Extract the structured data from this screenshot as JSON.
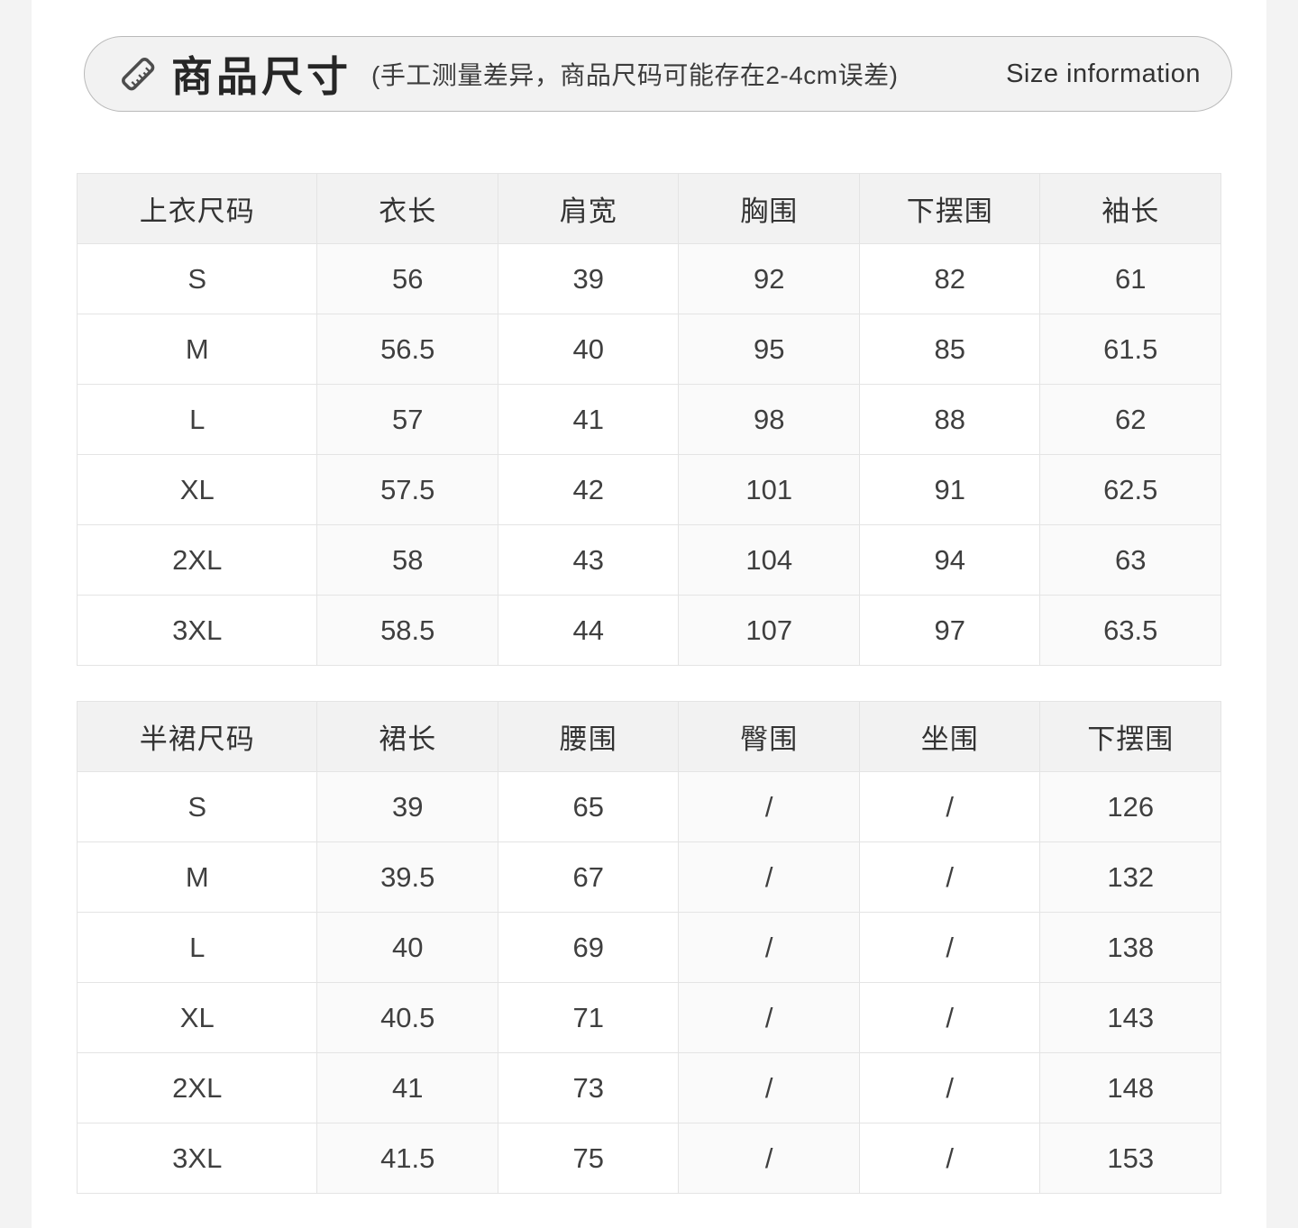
{
  "header": {
    "icon": "ruler-icon",
    "title": "商品尺寸",
    "subtitle": "(手工测量差异，商品尺码可能存在2-4cm误差)",
    "subtitle_en": "Size information"
  },
  "tables": [
    {
      "name": "tops-size-table",
      "columns": [
        "上衣尺码",
        "衣长",
        "肩宽",
        "胸围",
        "下摆围",
        "袖长"
      ],
      "rows": [
        [
          "S",
          "56",
          "39",
          "92",
          "82",
          "61"
        ],
        [
          "M",
          "56.5",
          "40",
          "95",
          "85",
          "61.5"
        ],
        [
          "L",
          "57",
          "41",
          "98",
          "88",
          "62"
        ],
        [
          "XL",
          "57.5",
          "42",
          "101",
          "91",
          "62.5"
        ],
        [
          "2XL",
          "58",
          "43",
          "104",
          "94",
          "63"
        ],
        [
          "3XL",
          "58.5",
          "44",
          "107",
          "97",
          "63.5"
        ]
      ]
    },
    {
      "name": "skirt-size-table",
      "columns": [
        "半裙尺码",
        "裙长",
        "腰围",
        "臀围",
        "坐围",
        "下摆围"
      ],
      "rows": [
        [
          "S",
          "39",
          "65",
          "/",
          "/",
          "126"
        ],
        [
          "M",
          "39.5",
          "67",
          "/",
          "/",
          "132"
        ],
        [
          "L",
          "40",
          "69",
          "/",
          "/",
          "138"
        ],
        [
          "XL",
          "40.5",
          "71",
          "/",
          "/",
          "143"
        ],
        [
          "2XL",
          "41",
          "73",
          "/",
          "/",
          "148"
        ],
        [
          "3XL",
          "41.5",
          "75",
          "/",
          "/",
          "153"
        ]
      ]
    }
  ],
  "colors": {
    "pill_bg": "#f2f2f2",
    "pill_border": "#b9b9b9",
    "header_row_bg": "#f2f2f2",
    "stripe_column_bg": "#fafafa",
    "table_border": "#e4e4e4",
    "title_text": "#262626",
    "body_text": "#3f3f3f",
    "side_strip_bg": "#f3f3f3",
    "icon_stroke": "#4d4d4d"
  }
}
